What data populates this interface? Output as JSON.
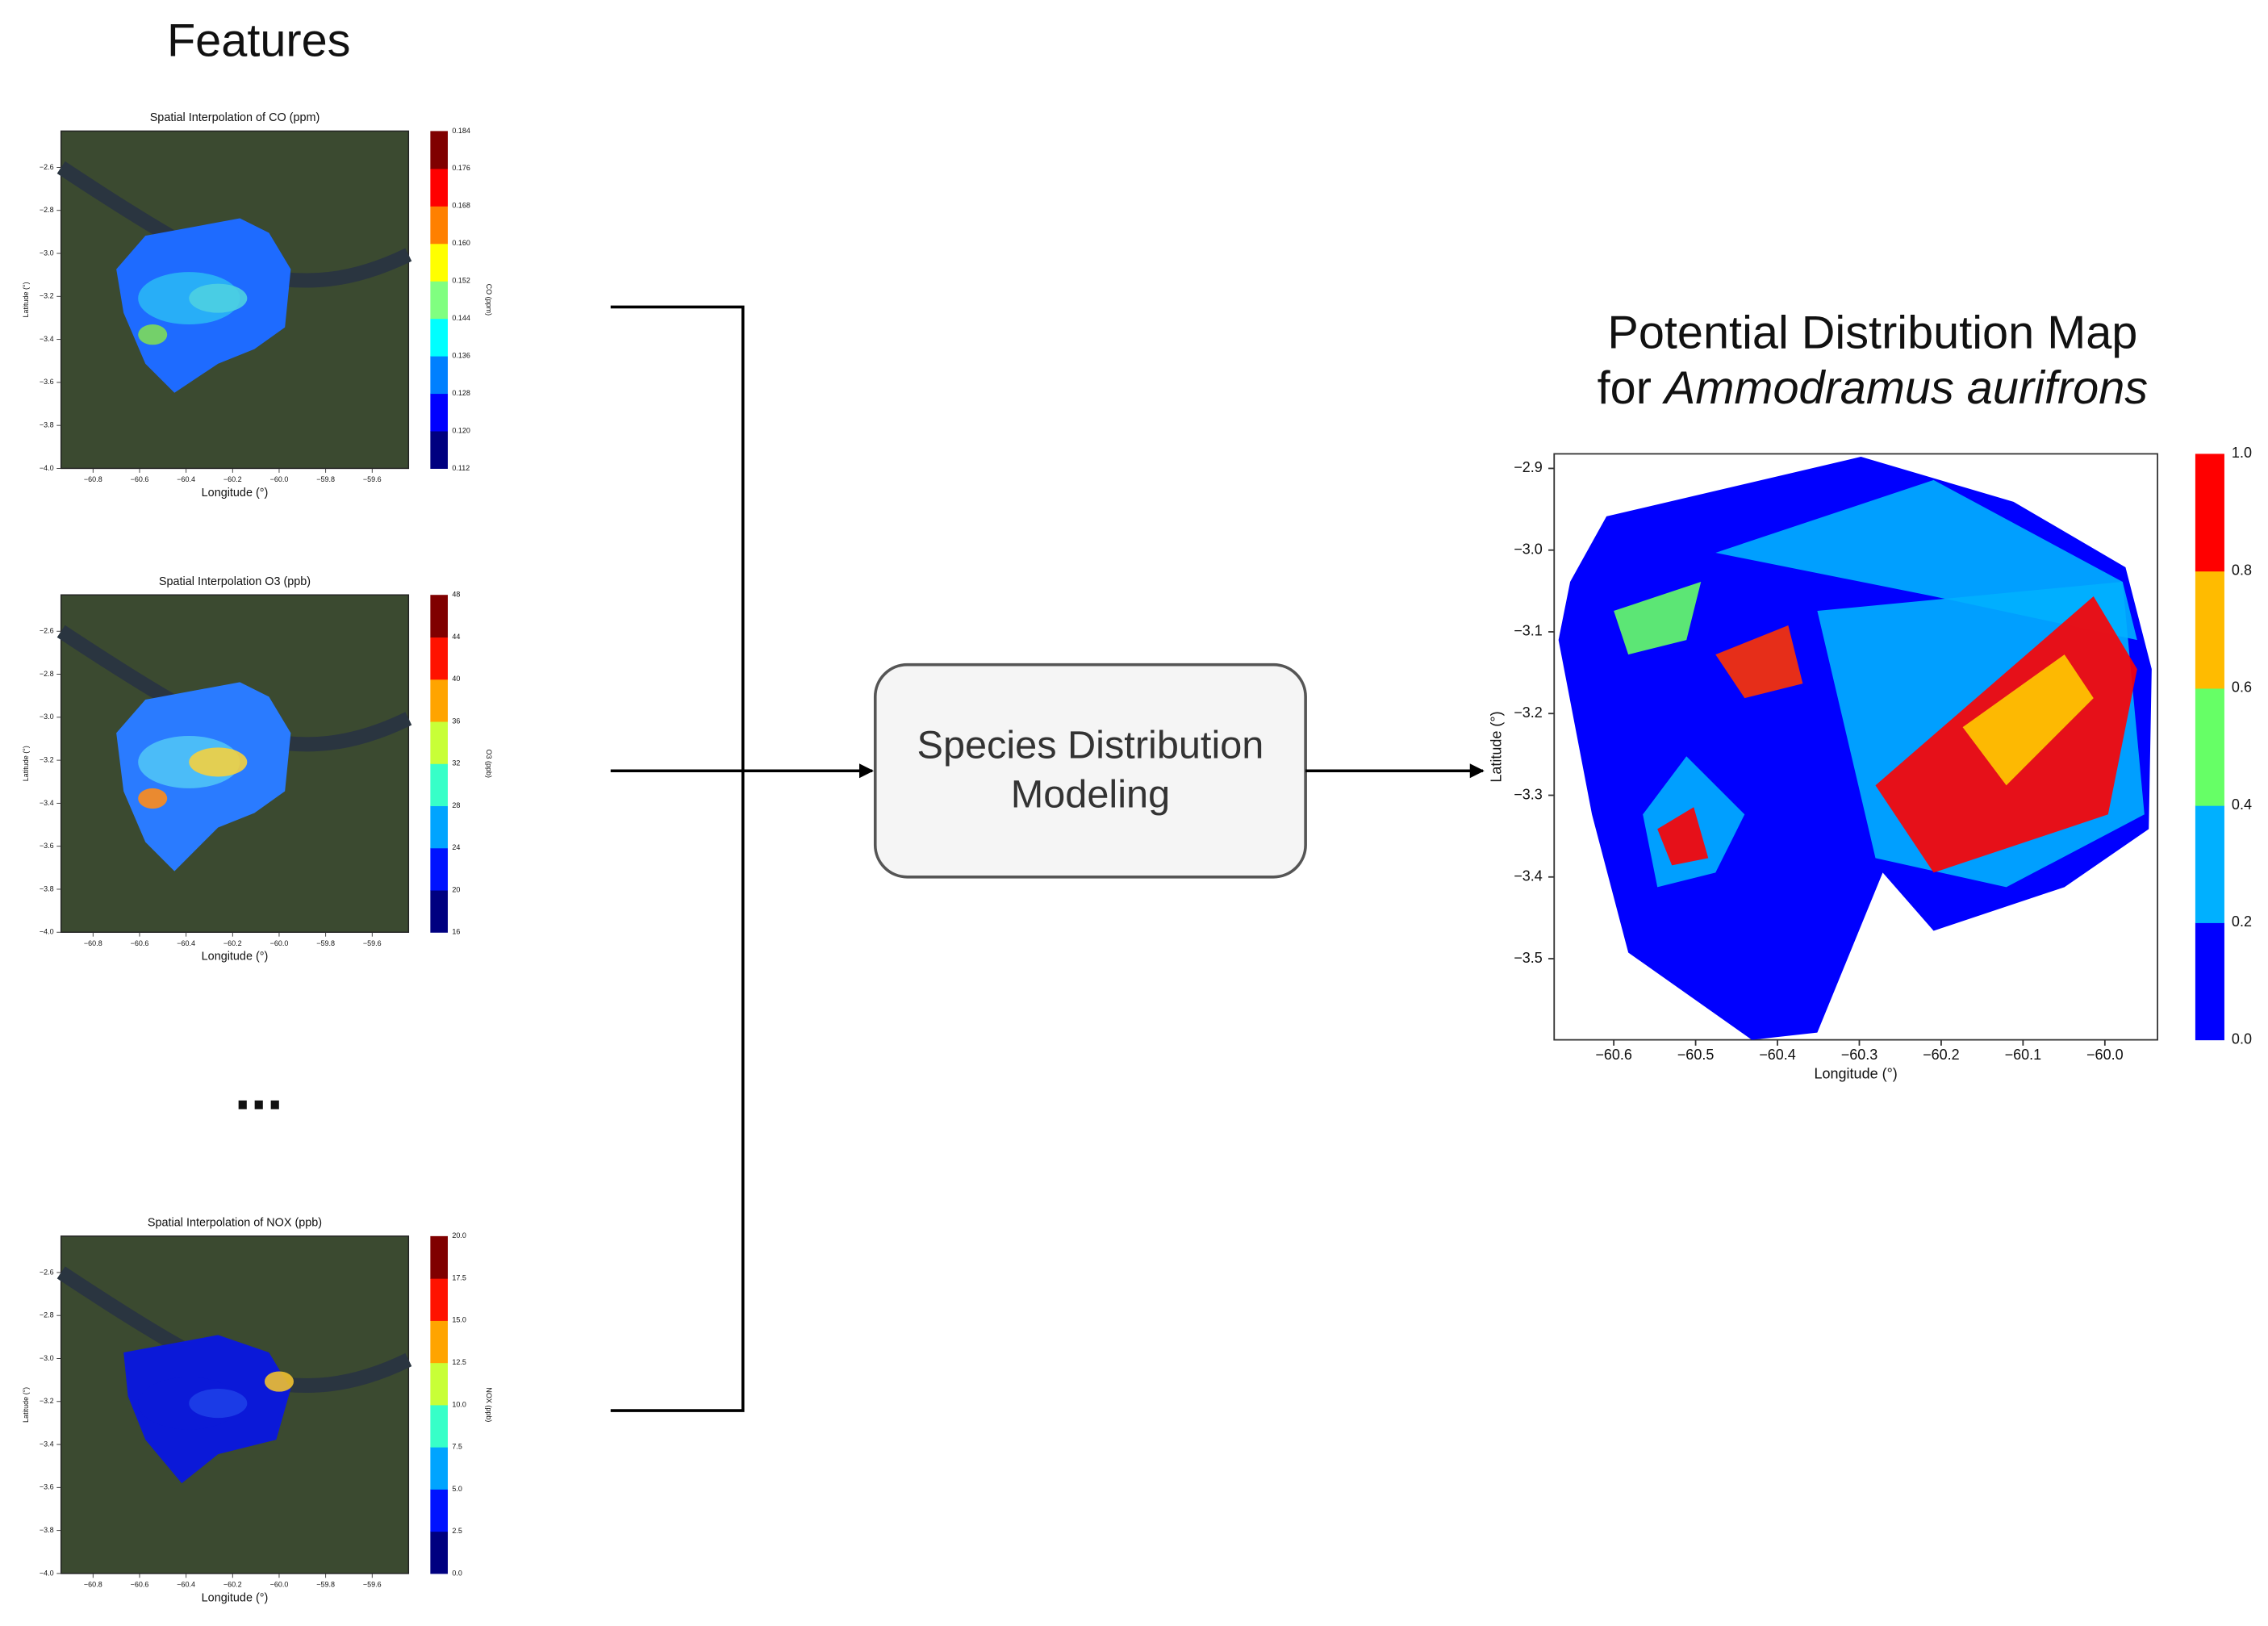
{
  "header": {
    "title": "Features"
  },
  "features": [
    {
      "title": "Spatial Interpolation of CO (ppm)",
      "xlabel": "Longitude (°)",
      "ylabel": "Latitude (°)",
      "xticks": [
        "−60.8",
        "−60.6",
        "−60.4",
        "−60.2",
        "−60.0",
        "−59.8",
        "−59.6"
      ],
      "yticks": [
        "−2.6",
        "−2.8",
        "−3.0",
        "−3.2",
        "−3.4",
        "−3.6",
        "−3.8",
        "−4.0"
      ],
      "colorbar_label": "CO (ppm)",
      "colorbar_ticks": [
        "0.184",
        "0.176",
        "0.168",
        "0.160",
        "0.152",
        "0.144",
        "0.136",
        "0.128",
        "0.120",
        "0.112"
      ]
    },
    {
      "title": "Spatial Interpolation O3 (ppb)",
      "xlabel": "Longitude (°)",
      "ylabel": "Latitude (°)",
      "xticks": [
        "−60.8",
        "−60.6",
        "−60.4",
        "−60.2",
        "−60.0",
        "−59.8",
        "−59.6"
      ],
      "yticks": [
        "−2.6",
        "−2.8",
        "−3.0",
        "−3.2",
        "−3.4",
        "−3.6",
        "−3.8",
        "−4.0"
      ],
      "colorbar_label": "O3 (ppb)",
      "colorbar_ticks": [
        "48",
        "44",
        "40",
        "36",
        "32",
        "28",
        "24",
        "20",
        "16"
      ]
    },
    {
      "title": "Spatial Interpolation of NOX (ppb)",
      "xlabel": "Longitude (°)",
      "ylabel": "Latitude (°)",
      "xticks": [
        "−60.8",
        "−60.6",
        "−60.4",
        "−60.2",
        "−60.0",
        "−59.8",
        "−59.6"
      ],
      "yticks": [
        "−2.6",
        "−2.8",
        "−3.0",
        "−3.2",
        "−3.4",
        "−3.6",
        "−3.8",
        "−4.0"
      ],
      "colorbar_label": "NOX (ppb)",
      "colorbar_ticks": [
        "20.0",
        "17.5",
        "15.0",
        "12.5",
        "10.0",
        "7.5",
        "5.0",
        "2.5",
        "0.0"
      ]
    }
  ],
  "ellipsis": "...",
  "model": {
    "lines": [
      "Species Distribution",
      "Modeling"
    ]
  },
  "output": {
    "title_line1": "Potential Distribution Map",
    "title_prefix": "for ",
    "species": "Ammodramus aurifrons",
    "xlabel": "Longitude (°)",
    "ylabel": "Latitude (°)",
    "xticks": [
      "−60.6",
      "−60.5",
      "−60.4",
      "−60.3",
      "−60.2",
      "−60.1",
      "−60.0"
    ],
    "yticks": [
      "−2.9",
      "−3.0",
      "−3.1",
      "−3.2",
      "−3.3",
      "−3.4",
      "−3.5"
    ],
    "colorbar_ticks": [
      "1.0",
      "0.8",
      "0.6",
      "0.4",
      "0.2",
      "0.0"
    ]
  }
}
